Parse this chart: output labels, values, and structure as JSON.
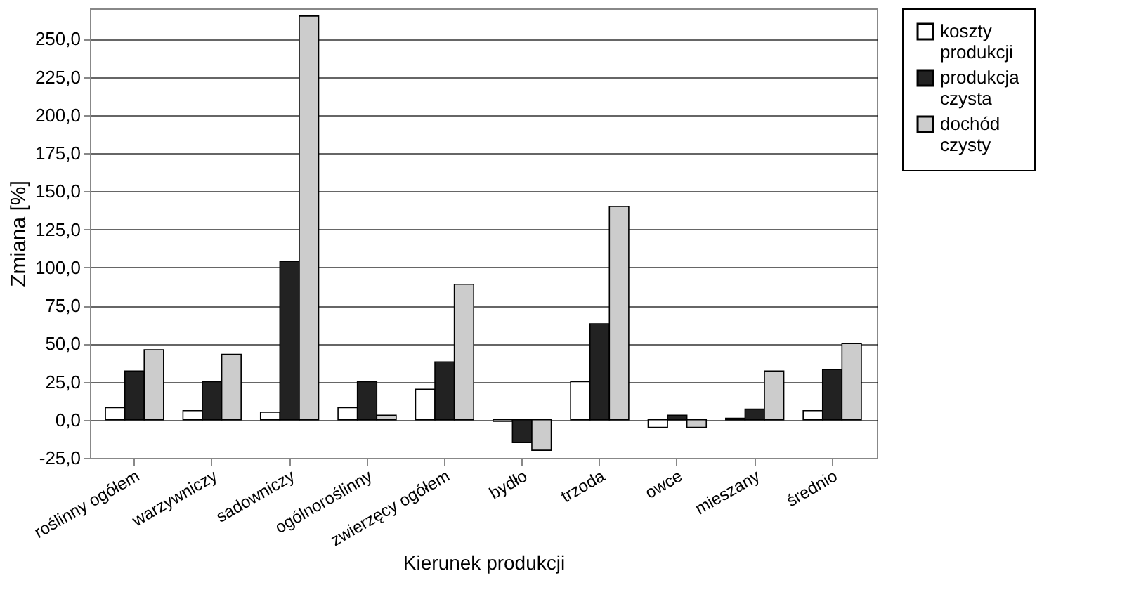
{
  "chart_data": {
    "type": "bar",
    "xlabel": "Kierunek produkcji",
    "ylabel": "Zmiana [%]",
    "categories": [
      "roślinny ogółem",
      "warzywniczy",
      "sadowniczy",
      "ogólnoroślinny",
      "zwierzęcy ogółem",
      "bydło",
      "trzoda",
      "owce",
      "mieszany",
      "średnio"
    ],
    "series": [
      {
        "name": "koszty produkcji",
        "color": "#ffffff",
        "values": [
          8,
          6,
          5,
          8,
          20,
          -1,
          25,
          -5,
          1,
          6
        ]
      },
      {
        "name": "produkcja czysta",
        "color": "#222222",
        "values": [
          32,
          25,
          104,
          25,
          38,
          -15,
          63,
          3,
          7,
          33
        ]
      },
      {
        "name": "dochód czysty",
        "color": "#cccccc",
        "values": [
          46,
          43,
          265,
          3,
          89,
          -20,
          140,
          -5,
          32,
          50
        ]
      }
    ],
    "ylim": [
      -25,
      270
    ],
    "yticks": [
      {
        "value": -25,
        "label": "-25,0"
      },
      {
        "value": 0,
        "label": "0,0"
      },
      {
        "value": 25,
        "label": "25,0"
      },
      {
        "value": 50,
        "label": "50,0"
      },
      {
        "value": 75,
        "label": "75,0"
      },
      {
        "value": 100,
        "label": "100,0"
      },
      {
        "value": 125,
        "label": "125,0"
      },
      {
        "value": 150,
        "label": "150,0"
      },
      {
        "value": 175,
        "label": "175,0"
      },
      {
        "value": 200,
        "label": "200,0"
      },
      {
        "value": 225,
        "label": "225,0"
      },
      {
        "value": 250,
        "label": "250,0"
      }
    ],
    "grid": "y",
    "legend": "right"
  }
}
